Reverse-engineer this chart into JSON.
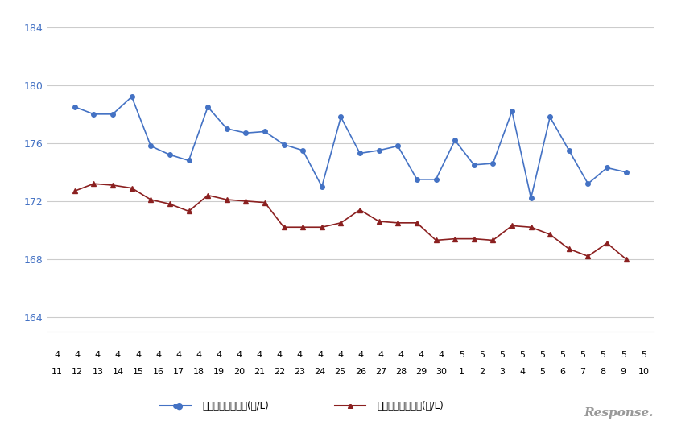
{
  "x_labels_top": [
    "4",
    "4",
    "4",
    "4",
    "4",
    "4",
    "4",
    "4",
    "4",
    "4",
    "4",
    "4",
    "4",
    "4",
    "4",
    "4",
    "4",
    "4",
    "4",
    "4",
    "5",
    "5",
    "5",
    "5",
    "5",
    "5",
    "5",
    "5",
    "5",
    "5"
  ],
  "x_labels_bottom": [
    "11",
    "12",
    "13",
    "14",
    "15",
    "16",
    "17",
    "18",
    "19",
    "20",
    "21",
    "22",
    "23",
    "24",
    "25",
    "26",
    "27",
    "28",
    "29",
    "30",
    "1",
    "2",
    "3",
    "4",
    "5",
    "6",
    "7",
    "8",
    "9",
    "10"
  ],
  "blue_values": [
    178.5,
    178.0,
    178.0,
    179.2,
    175.8,
    175.2,
    174.8,
    178.5,
    177.0,
    176.7,
    176.8,
    175.9,
    175.5,
    173.0,
    177.8,
    175.3,
    175.5,
    175.8,
    173.5,
    173.5,
    176.2,
    174.5,
    174.6,
    178.2,
    172.2,
    177.8,
    175.5,
    173.2,
    174.3,
    174.0
  ],
  "red_values": [
    172.7,
    173.2,
    173.1,
    172.9,
    172.1,
    171.8,
    171.3,
    172.4,
    172.1,
    172.0,
    171.9,
    170.2,
    170.2,
    170.2,
    170.5,
    171.4,
    170.6,
    170.5,
    170.5,
    169.3,
    169.4,
    169.4,
    169.3,
    170.3,
    170.2,
    169.7,
    168.7,
    168.2,
    169.1,
    168.0
  ],
  "ylim_min": 163,
  "ylim_max": 185,
  "yticks": [
    164,
    168,
    172,
    176,
    180,
    184
  ],
  "blue_color": "#4472C4",
  "red_color": "#8B2020",
  "blue_label": "ハイオク看板価格(円/L)",
  "red_label": "ハイオク実売価格(円/L)",
  "background_color": "#ffffff",
  "grid_color": "#CCCCCC",
  "tick_color": "#4472C4",
  "response_logo_text": "Response."
}
